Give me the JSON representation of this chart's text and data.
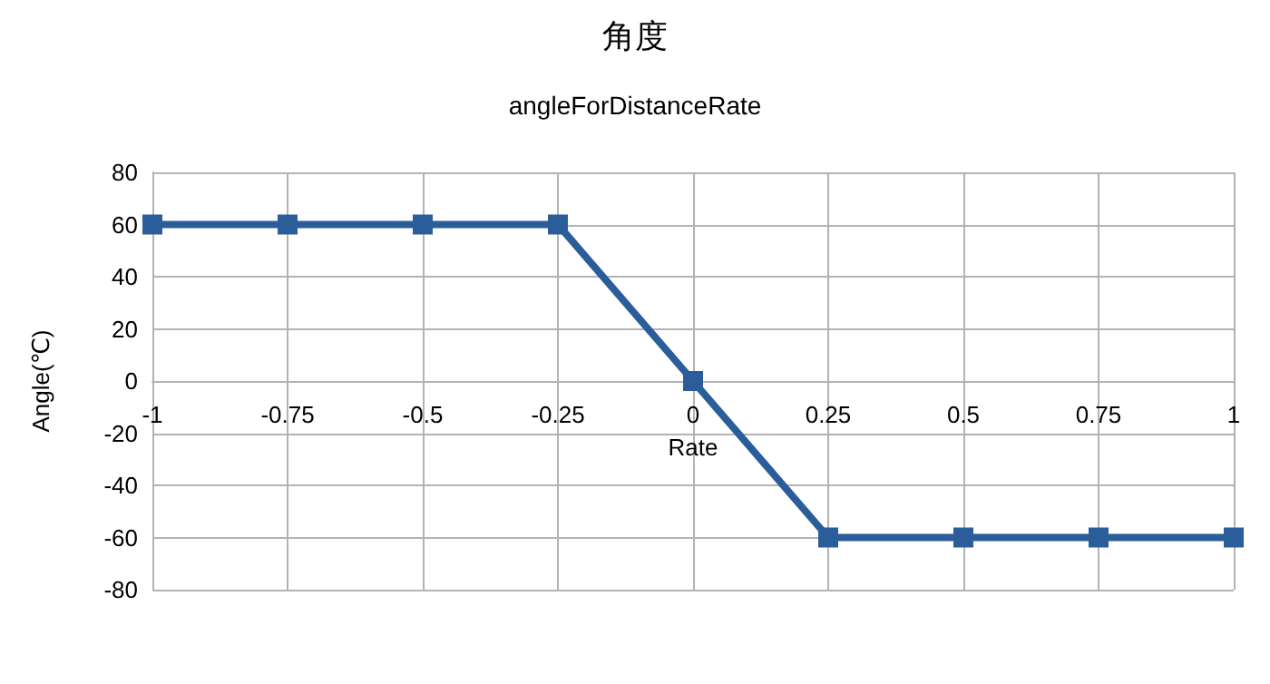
{
  "chart_data": {
    "type": "line",
    "title": "角度",
    "subtitle": "angleForDistanceRate",
    "xlabel": "Rate",
    "ylabel": "Angle(℃)",
    "x": [
      -1,
      -0.75,
      -0.5,
      -0.25,
      0,
      0.25,
      0.5,
      0.75,
      1
    ],
    "series": [
      {
        "color": "#2b5d9b",
        "values": [
          60,
          60,
          60,
          60,
          0,
          -60,
          -60,
          -60,
          -60
        ]
      }
    ],
    "xlim": [
      -1,
      1
    ],
    "xticks": [
      -1,
      -0.75,
      -0.5,
      -0.25,
      0,
      0.25,
      0.5,
      0.75,
      1
    ],
    "ylim": [
      -80,
      80
    ],
    "yticks": [
      -80,
      -60,
      -40,
      -20,
      0,
      20,
      40,
      60,
      80
    ],
    "grid": true,
    "marker": "square",
    "line_style": "solid"
  }
}
